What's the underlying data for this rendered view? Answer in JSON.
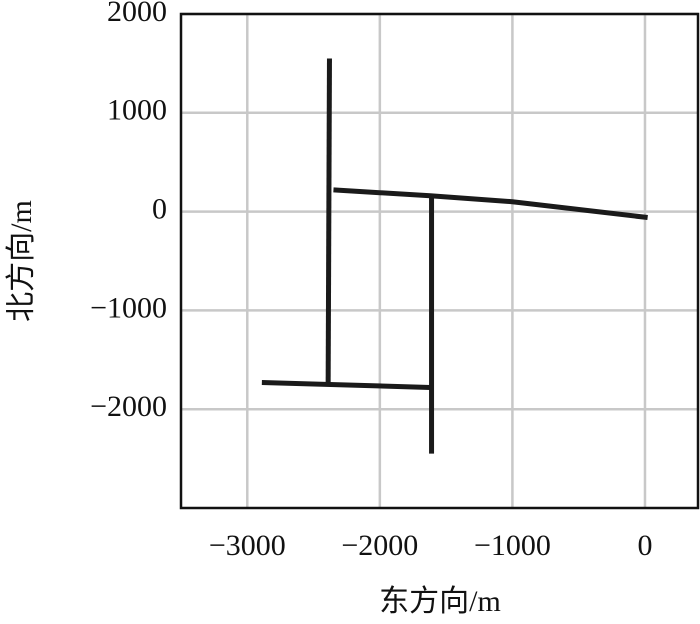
{
  "chart_data": {
    "type": "line",
    "xlabel": "东方向/m",
    "ylabel": "北方向/m",
    "xlim": [
      -3500,
      400
    ],
    "ylim": [
      -3000,
      2000
    ],
    "xticks": [
      {
        "value": -3000,
        "label": "−3000"
      },
      {
        "value": -2000,
        "label": "−2000"
      },
      {
        "value": -1000,
        "label": "−1000"
      },
      0
    ],
    "yticks": [
      {
        "value": -2000,
        "label": "−2000"
      },
      {
        "value": -1000,
        "label": "−1000"
      },
      0,
      1000,
      2000
    ],
    "grid": true,
    "series": [
      {
        "color": "#1a1a1a",
        "x": [
          -2380,
          -2390
        ],
        "values": [
          1550,
          -1740
        ]
      },
      {
        "color": "#1a1a1a",
        "x": [
          -2350,
          -1620,
          -1000,
          20
        ],
        "values": [
          220,
          160,
          100,
          -60
        ]
      },
      {
        "color": "#1a1a1a",
        "x": [
          -1610,
          -1610
        ],
        "values": [
          160,
          -2450
        ]
      },
      {
        "color": "#1a1a1a",
        "x": [
          -2890,
          -1620
        ],
        "values": [
          -1730,
          -1780
        ]
      }
    ]
  }
}
